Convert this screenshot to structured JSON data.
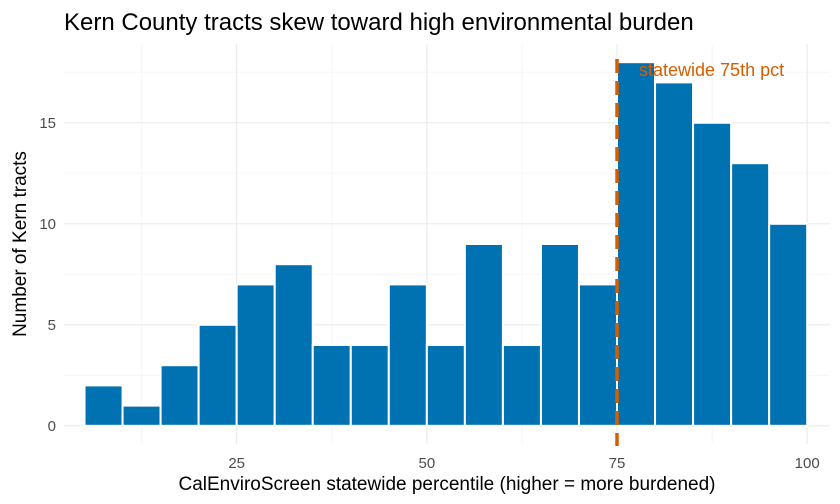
{
  "chart_data": {
    "type": "bar",
    "title": "Kern County tracts skew toward high environmental burden",
    "xlabel": "CalEnviroScreen statewide percentile (higher = more burdened)",
    "ylabel": "Number of Kern tracts",
    "bin_width": 5,
    "bins": [
      {
        "start": 5,
        "end": 10,
        "count": 2
      },
      {
        "start": 10,
        "end": 15,
        "count": 1
      },
      {
        "start": 15,
        "end": 20,
        "count": 3
      },
      {
        "start": 20,
        "end": 25,
        "count": 5
      },
      {
        "start": 25,
        "end": 30,
        "count": 7
      },
      {
        "start": 30,
        "end": 35,
        "count": 8
      },
      {
        "start": 35,
        "end": 40,
        "count": 4
      },
      {
        "start": 40,
        "end": 45,
        "count": 4
      },
      {
        "start": 45,
        "end": 50,
        "count": 7
      },
      {
        "start": 50,
        "end": 55,
        "count": 4
      },
      {
        "start": 55,
        "end": 60,
        "count": 9
      },
      {
        "start": 60,
        "end": 65,
        "count": 4
      },
      {
        "start": 65,
        "end": 70,
        "count": 9
      },
      {
        "start": 70,
        "end": 75,
        "count": 7
      },
      {
        "start": 75,
        "end": 80,
        "count": 18
      },
      {
        "start": 80,
        "end": 85,
        "count": 17
      },
      {
        "start": 85,
        "end": 90,
        "count": 15
      },
      {
        "start": 90,
        "end": 95,
        "count": 13
      },
      {
        "start": 95,
        "end": 100,
        "count": 10
      }
    ],
    "xlim": [
      2.3,
      103
    ],
    "ylim": [
      -0.9,
      18.9
    ],
    "x_ticks": [
      25,
      50,
      75,
      100
    ],
    "y_ticks": [
      0,
      5,
      10,
      15
    ],
    "reference_line": {
      "x": 75,
      "label": "statewide 75th pct",
      "style": "dashed"
    },
    "grid": true,
    "colors": {
      "bar": "#0072B2",
      "bar_outline": "#ffffff",
      "reference": "#D55E00",
      "grid_major": "#ebebeb",
      "grid_minor": "#f5f5f5"
    }
  }
}
